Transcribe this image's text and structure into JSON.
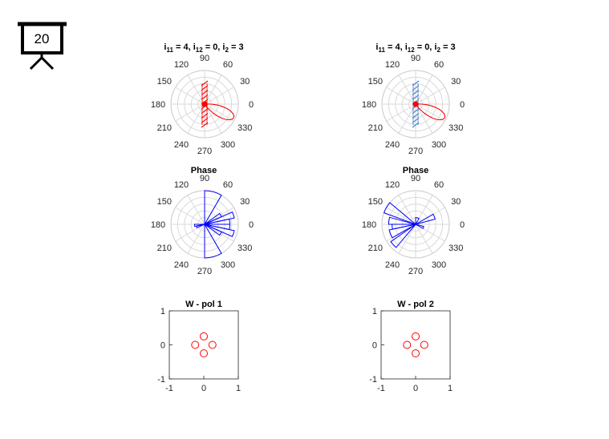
{
  "slide": {
    "number": "20",
    "icon": "presentation-board-icon"
  },
  "colors": {
    "pattern_red": "#ff0000",
    "hatch_blue": "#4a7fd0",
    "phase_blue": "#0000ff",
    "grid": "#d9d9d9",
    "axis_text": "#262626"
  },
  "polar_angle_labels": [
    "0",
    "30",
    "60",
    "90",
    "120",
    "150",
    "180",
    "210",
    "240",
    "270",
    "300",
    "330"
  ],
  "chart_data": [
    {
      "id": "pattern-left",
      "type": "polar-line",
      "title_parts": [
        "i",
        "11",
        " = 4, i",
        "12",
        " = 0, i",
        "2",
        " = 3"
      ],
      "angle_ticks_deg": [
        0,
        30,
        60,
        90,
        120,
        150,
        180,
        210,
        240,
        270,
        300,
        330
      ],
      "main_lobe": {
        "direction_deg": 335,
        "peak": 0.95,
        "beamwidth_deg": 20
      },
      "hatch_band": {
        "color": "red",
        "lines": 10
      }
    },
    {
      "id": "pattern-right",
      "type": "polar-line",
      "title_parts": [
        "i",
        "11",
        " = 4, i",
        "12",
        " = 0, i",
        "2",
        " = 3"
      ],
      "angle_ticks_deg": [
        0,
        30,
        60,
        90,
        120,
        150,
        180,
        210,
        240,
        270,
        300,
        330
      ],
      "main_lobe": {
        "direction_deg": 335,
        "peak": 0.95,
        "beamwidth_deg": 20
      },
      "hatch_band": {
        "color": "blue",
        "lines": 10
      }
    },
    {
      "id": "phase-left",
      "type": "polar-histogram",
      "title": "Phase",
      "angle_ticks_deg": [
        0,
        30,
        60,
        90,
        120,
        150,
        180,
        210,
        240,
        270,
        300,
        330
      ],
      "bins": [
        {
          "start_deg": 0,
          "end_deg": 12,
          "r": 0.75
        },
        {
          "start_deg": 12,
          "end_deg": 24,
          "r": 0.9
        },
        {
          "start_deg": 24,
          "end_deg": 36,
          "r": 0.55
        },
        {
          "start_deg": 60,
          "end_deg": 90,
          "r": 1.0
        },
        {
          "start_deg": 180,
          "end_deg": 192,
          "r": 0.3
        },
        {
          "start_deg": 192,
          "end_deg": 204,
          "r": 0.25
        },
        {
          "start_deg": 270,
          "end_deg": 300,
          "r": 1.0
        },
        {
          "start_deg": 324,
          "end_deg": 336,
          "r": 0.55
        },
        {
          "start_deg": 336,
          "end_deg": 348,
          "r": 0.9
        },
        {
          "start_deg": 348,
          "end_deg": 360,
          "r": 0.75
        }
      ]
    },
    {
      "id": "phase-right",
      "type": "polar-histogram",
      "title": "Phase",
      "angle_ticks_deg": [
        0,
        30,
        60,
        90,
        120,
        150,
        180,
        210,
        240,
        270,
        300,
        330
      ],
      "bins": [
        {
          "start_deg": 15,
          "end_deg": 30,
          "r": 0.6
        },
        {
          "start_deg": 60,
          "end_deg": 90,
          "r": 0.2
        },
        {
          "start_deg": 140,
          "end_deg": 160,
          "r": 1.0
        },
        {
          "start_deg": 165,
          "end_deg": 180,
          "r": 0.8
        },
        {
          "start_deg": 180,
          "end_deg": 192,
          "r": 0.7
        },
        {
          "start_deg": 192,
          "end_deg": 210,
          "r": 0.8
        },
        {
          "start_deg": 215,
          "end_deg": 230,
          "r": 0.9
        },
        {
          "start_deg": 330,
          "end_deg": 345,
          "r": 0.25
        }
      ]
    },
    {
      "id": "weights-left",
      "type": "scatter",
      "title": "W - pol 1",
      "xlim": [
        -1,
        1
      ],
      "ylim": [
        -1,
        1
      ],
      "x_ticks": [
        "-1",
        "0",
        "1"
      ],
      "y_ticks": [
        "-1",
        "0",
        "1"
      ],
      "points": [
        {
          "x": 0,
          "y": 0.25
        },
        {
          "x": -0.25,
          "y": 0
        },
        {
          "x": 0.25,
          "y": 0
        },
        {
          "x": 0,
          "y": -0.25
        }
      ]
    },
    {
      "id": "weights-right",
      "type": "scatter",
      "title": "W - pol 2",
      "xlim": [
        -1,
        1
      ],
      "ylim": [
        -1,
        1
      ],
      "x_ticks": [
        "-1",
        "0",
        "1"
      ],
      "y_ticks": [
        "-1",
        "0",
        "1"
      ],
      "points": [
        {
          "x": 0,
          "y": 0.25
        },
        {
          "x": -0.25,
          "y": 0
        },
        {
          "x": 0.25,
          "y": 0
        },
        {
          "x": 0,
          "y": -0.25
        }
      ]
    }
  ]
}
